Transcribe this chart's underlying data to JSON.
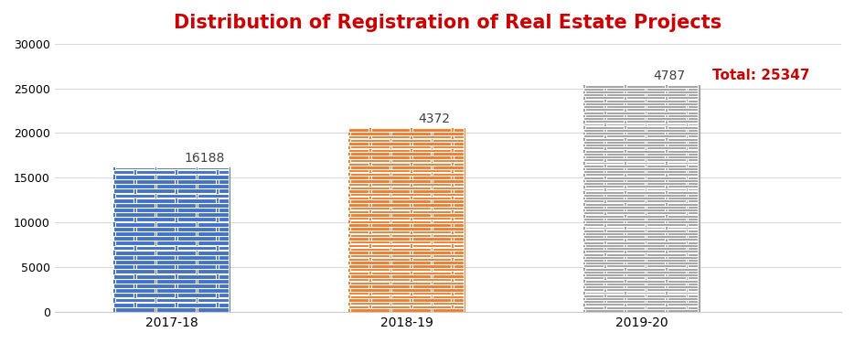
{
  "title": "Distribution of Registration of Real Estate Projects",
  "title_color": "#cc0000",
  "categories": [
    "2017-18",
    "2018-19",
    "2019-20"
  ],
  "values": [
    16188,
    20560,
    25347
  ],
  "display_labels": [
    "16188",
    "4372",
    "4787"
  ],
  "bar_colors": [
    "#4472c4",
    "#ed7d31",
    "#a5a5a5"
  ],
  "bar_edge_colors": [
    "#ffffff",
    "#ffffff",
    "#ffffff"
  ],
  "total_label": "Total: 25347",
  "total_color": "#cc0000",
  "ylim": [
    0,
    30000
  ],
  "yticks": [
    0,
    5000,
    10000,
    15000,
    20000,
    25000,
    30000
  ],
  "background_color": "#ffffff",
  "grid_color": "#d9d9d9",
  "label_fontsize": 10,
  "title_fontsize": 15,
  "bar_width": 0.5,
  "brick_size_blue": [
    0.045,
    0.0045
  ],
  "brick_size_orange": [
    0.045,
    0.012
  ],
  "brick_size_gray": [
    0.045,
    0.007
  ]
}
